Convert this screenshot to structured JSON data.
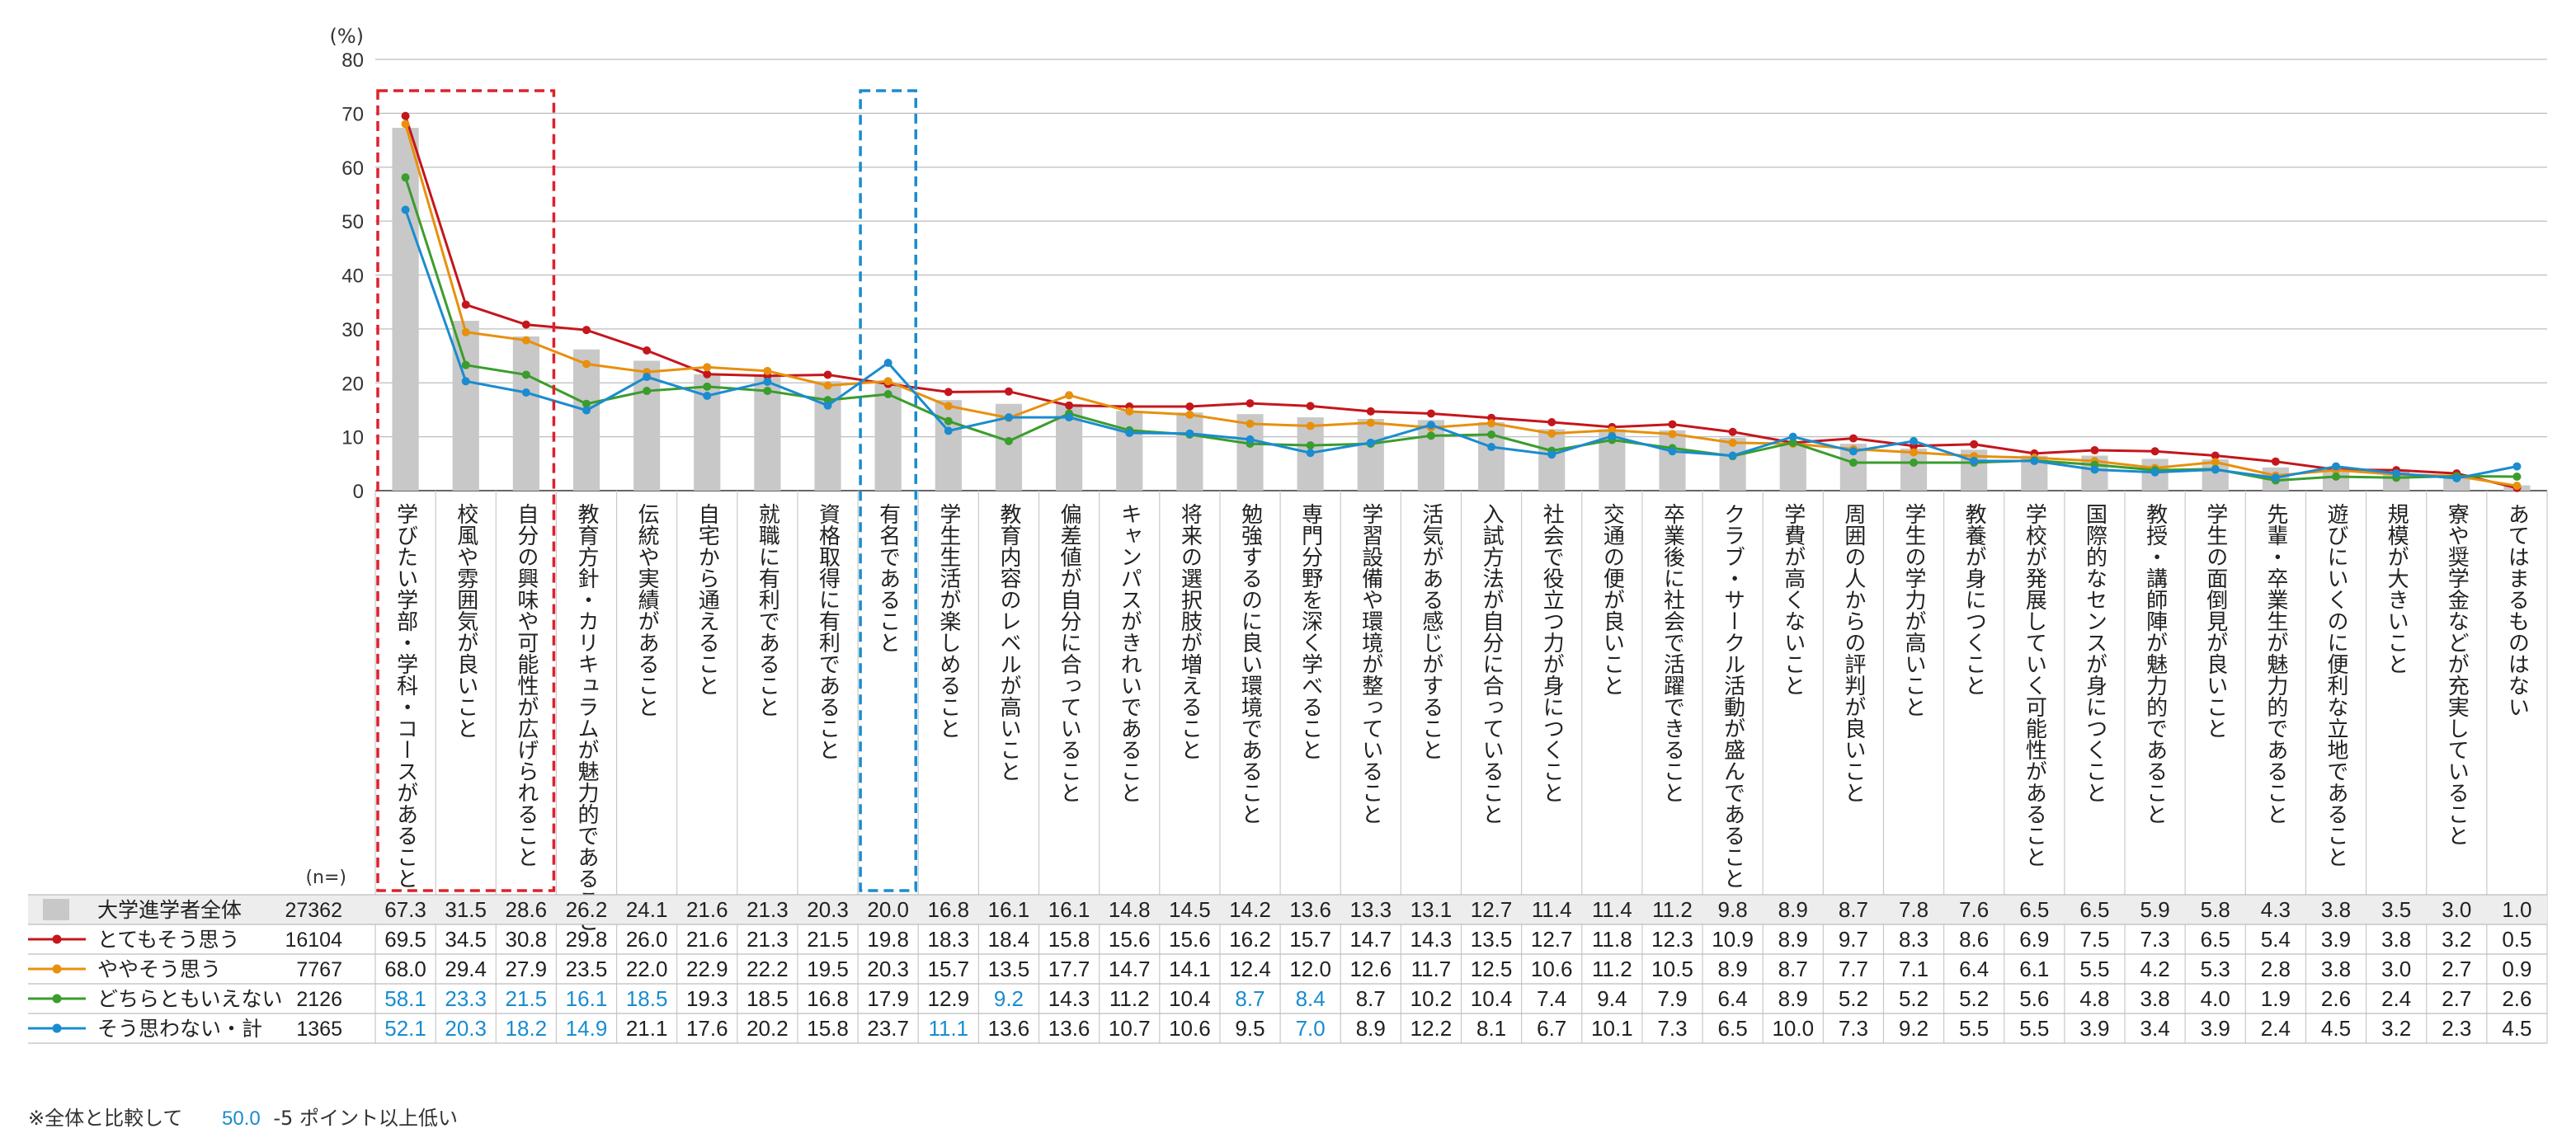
{
  "chart_data": {
    "type": "bar",
    "y_unit_label": "(%)",
    "n_label": "(n=)",
    "ylim": [
      0,
      80
    ],
    "y_ticks": [
      0,
      10,
      20,
      30,
      40,
      50,
      60,
      70,
      80
    ],
    "categories": [
      "学びたい学部・学科・コースがあること",
      "校風や雰囲気が良いこと",
      "自分の興味や可能性が広げられること",
      "教育方針・カリキュラムが魅力的であること",
      "伝統や実績があること",
      "自宅から通えること",
      "就職に有利であること",
      "資格取得に有利であること",
      "有名であること",
      "学生生活が楽しめること",
      "教育内容のレベルが高いこと",
      "偏差値が自分に合っていること",
      "キャンパスがきれいであること",
      "将来の選択肢が増えること",
      "勉強するのに良い環境であること",
      "専門分野を深く学べること",
      "学習設備や環境が整っていること",
      "活気がある感じがすること",
      "入試方法が自分に合っていること",
      "社会で役立つ力が身につくこと",
      "交通の便が良いこと",
      "卒業後に社会で活躍できること",
      "クラブ・サークル活動が盛んであること",
      "学費が高くないこと",
      "周囲の人からの評判が良いこと",
      "学生の学力が高いこと",
      "教養が身につくこと",
      "学校が発展していく可能性があること",
      "国際的なセンスが身につくこと",
      "教授・講師陣が魅力的であること",
      "学生の面倒見が良いこと",
      "先輩・卒業生が魅力的であること",
      "遊びにいくのに便利な立地であること",
      "規模が大きいこと",
      "寮や奨学金などが充実していること",
      "あてはまるものはない"
    ],
    "series": [
      {
        "name": "大学進学者全体",
        "n": "27362",
        "kind": "bar",
        "color": "#c8c8c8",
        "values": [
          67.3,
          31.5,
          28.6,
          26.2,
          24.1,
          21.6,
          21.3,
          20.3,
          20.0,
          16.8,
          16.1,
          16.1,
          14.8,
          14.5,
          14.2,
          13.6,
          13.3,
          13.1,
          12.7,
          11.4,
          11.4,
          11.2,
          9.8,
          8.9,
          8.7,
          7.8,
          7.6,
          6.5,
          6.5,
          5.9,
          5.8,
          4.3,
          3.8,
          3.5,
          3.0,
          1.0
        ]
      },
      {
        "name": "とてもそう思う",
        "n": "16104",
        "kind": "line",
        "color": "#c4161c",
        "values": [
          69.5,
          34.5,
          30.8,
          29.8,
          26.0,
          21.6,
          21.3,
          21.5,
          19.8,
          18.3,
          18.4,
          15.8,
          15.6,
          15.6,
          16.2,
          15.7,
          14.7,
          14.3,
          13.5,
          12.7,
          11.8,
          12.3,
          10.9,
          8.9,
          9.7,
          8.3,
          8.6,
          6.9,
          7.5,
          7.3,
          6.5,
          5.4,
          3.9,
          3.8,
          3.2,
          0.5
        ]
      },
      {
        "name": "ややそう思う",
        "n": "7767",
        "kind": "line",
        "color": "#e8900c",
        "values": [
          68.0,
          29.4,
          27.9,
          23.5,
          22.0,
          22.9,
          22.2,
          19.5,
          20.3,
          15.7,
          13.5,
          17.7,
          14.7,
          14.1,
          12.4,
          12.0,
          12.6,
          11.7,
          12.5,
          10.6,
          11.2,
          10.5,
          8.9,
          8.7,
          7.7,
          7.1,
          6.4,
          6.1,
          5.5,
          4.2,
          5.3,
          2.8,
          3.8,
          3.0,
          2.7,
          0.9
        ]
      },
      {
        "name": "どちらともいえない",
        "n": "2126",
        "kind": "line",
        "color": "#3a9d2c",
        "values": [
          58.1,
          23.3,
          21.5,
          16.1,
          18.5,
          19.3,
          18.5,
          16.8,
          17.9,
          12.9,
          9.2,
          14.3,
          11.2,
          10.4,
          8.7,
          8.4,
          8.7,
          10.2,
          10.4,
          7.4,
          9.4,
          7.9,
          6.4,
          8.9,
          5.2,
          5.2,
          5.2,
          5.6,
          4.8,
          3.8,
          4.0,
          1.9,
          2.6,
          2.4,
          2.7,
          2.6
        ]
      },
      {
        "name": "そう思わない・計",
        "n": "1365",
        "kind": "line",
        "color": "#1a8ccf",
        "values": [
          52.1,
          20.3,
          18.2,
          14.9,
          21.1,
          17.6,
          20.2,
          15.8,
          23.7,
          11.1,
          13.6,
          13.6,
          10.7,
          10.6,
          9.5,
          7.0,
          8.9,
          12.2,
          8.1,
          6.7,
          10.1,
          7.3,
          6.5,
          10.0,
          7.3,
          9.2,
          5.5,
          5.5,
          3.9,
          3.4,
          3.9,
          2.4,
          4.5,
          3.2,
          2.3,
          4.5
        ]
      }
    ],
    "highlight_low": [
      [],
      [],
      [],
      [
        0,
        1,
        2,
        3,
        4,
        10,
        14,
        15
      ],
      [
        0,
        1,
        2,
        3,
        9,
        15
      ]
    ],
    "highlight_boxes": [
      {
        "from": 0,
        "to": 2,
        "color": "#e0202a"
      },
      {
        "from": 8,
        "to": 8,
        "color": "#1a8ccf"
      }
    ],
    "grid": true,
    "legend_placement": "table-left"
  },
  "footnote": {
    "prefix": "※全体と比較して",
    "sample": "50.0",
    "suffix": "-5 ポイント以上低い"
  }
}
